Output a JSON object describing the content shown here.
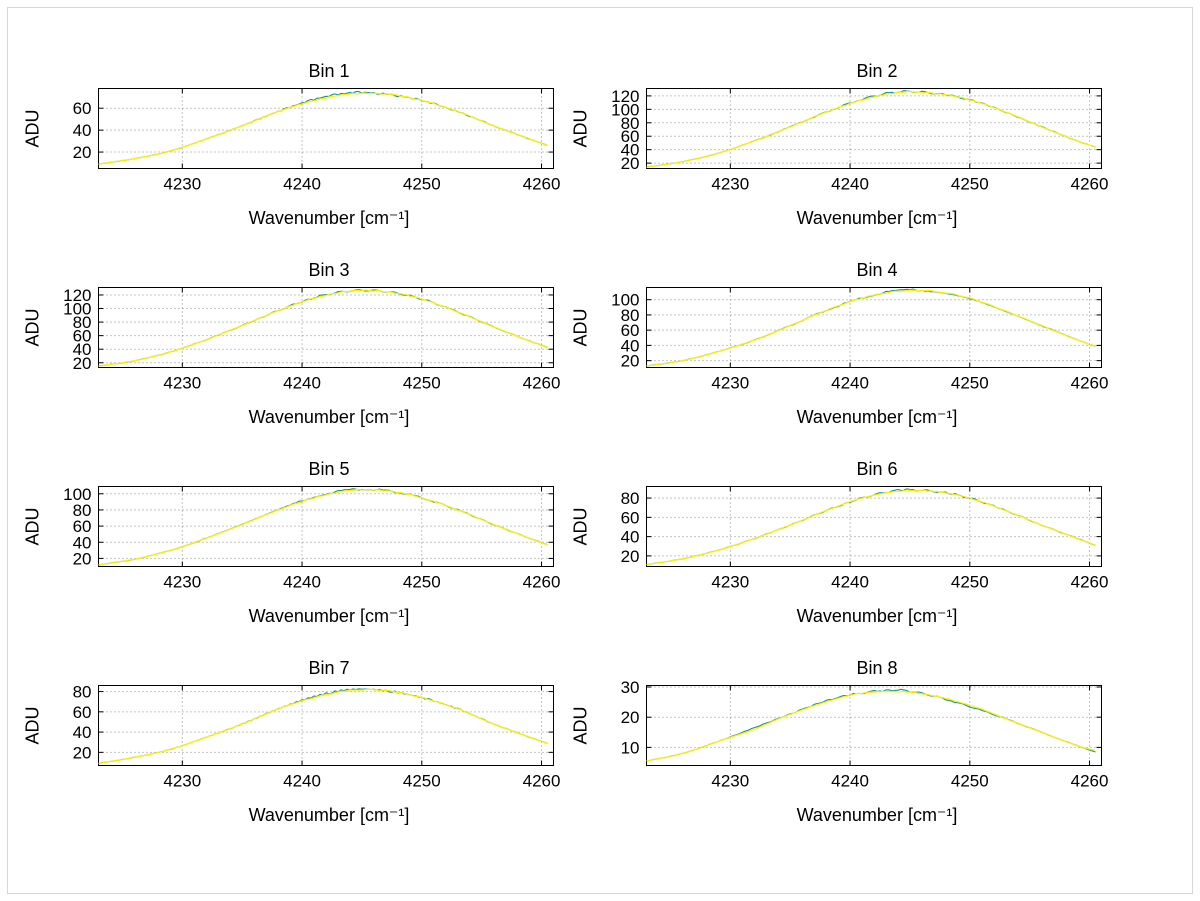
{
  "figure": {
    "background": "#ffffff",
    "frame_border": "#d6d6d6"
  },
  "chart_data": {
    "type": "line",
    "layout": {
      "rows": 4,
      "cols": 2
    },
    "xlabel": "Wavenumber [cm⁻¹]",
    "ylabel": "ADU",
    "xlim": [
      4223,
      4261
    ],
    "xticks": [
      4230,
      4240,
      4250,
      4260
    ],
    "grid": "dotted",
    "legend": "none",
    "palette": {
      "grid": "#8a8a8a",
      "axis": "#000000",
      "text": "#000000"
    },
    "x": [
      4223,
      4226,
      4229,
      4232,
      4235,
      4238,
      4241,
      4244,
      4247,
      4250,
      4253,
      4256,
      4259,
      4260.5
    ],
    "subplots": [
      {
        "title": "Bin 1",
        "ylim": [
          5,
          78
        ],
        "yticks": [
          20,
          40,
          60
        ],
        "series": [
          {
            "name": "trace1",
            "color": "#15978a",
            "values": [
              9,
              14,
              21,
              32,
              44,
              57,
              68,
              74,
              73,
              67,
              57,
              44,
              32,
              26
            ]
          },
          {
            "name": "trace2",
            "color": "#ffee00",
            "values": [
              9,
              14,
              21,
              32,
              44,
              57,
              67,
              73,
              73,
              67,
              57,
              44,
              32,
              26
            ]
          }
        ]
      },
      {
        "title": "Bin 2",
        "ylim": [
          12,
          131
        ],
        "yticks": [
          20,
          40,
          60,
          80,
          100,
          120
        ],
        "series": [
          {
            "name": "trace1",
            "color": "#15978a",
            "values": [
              14,
              22,
              35,
              53,
              74,
              96,
              115,
              126,
              124,
              114,
              96,
              74,
              53,
              44
            ]
          },
          {
            "name": "trace2",
            "color": "#ffee00",
            "values": [
              14,
              22,
              35,
              53,
              74,
              96,
              114,
              125,
              124,
              114,
              96,
              74,
              53,
              44
            ]
          }
        ]
      },
      {
        "title": "Bin 3",
        "ylim": [
          13,
          131
        ],
        "yticks": [
          20,
          40,
          60,
          80,
          100,
          120
        ],
        "series": [
          {
            "name": "trace1",
            "color": "#15978a",
            "values": [
              15,
              23,
              36,
              54,
              75,
              97,
              116,
              126,
              125,
              114,
              95,
              73,
              52,
              43
            ]
          },
          {
            "name": "trace2",
            "color": "#ffee00",
            "values": [
              15,
              23,
              36,
              54,
              75,
              97,
              115,
              126,
              125,
              114,
              95,
              73,
              52,
              43
            ]
          }
        ]
      },
      {
        "title": "Bin 4",
        "ylim": [
          11,
          116
        ],
        "yticks": [
          20,
          40,
          60,
          80,
          100
        ],
        "series": [
          {
            "name": "trace1",
            "color": "#15978a",
            "values": [
              13,
              20,
              32,
              47,
              66,
              86,
              102,
              112,
              111,
              102,
              85,
              66,
              47,
              39
            ]
          },
          {
            "name": "trace2",
            "color": "#ffee00",
            "values": [
              13,
              20,
              32,
              47,
              66,
              86,
              102,
              111,
              111,
              102,
              85,
              66,
              47,
              39
            ]
          }
        ]
      },
      {
        "title": "Bin 5",
        "ylim": [
          10,
          109
        ],
        "yticks": [
          20,
          40,
          60,
          80,
          100
        ],
        "series": [
          {
            "name": "trace1",
            "color": "#15978a",
            "values": [
              12,
              19,
              30,
              45,
              62,
              80,
              96,
              105,
              104,
              95,
              80,
              62,
              45,
              37
            ]
          },
          {
            "name": "trace2",
            "color": "#ffee00",
            "values": [
              12,
              19,
              30,
              45,
              62,
              80,
              95,
              104,
              104,
              95,
              80,
              62,
              45,
              37
            ]
          }
        ]
      },
      {
        "title": "Bin 6",
        "ylim": [
          9,
          92
        ],
        "yticks": [
          20,
          40,
          60,
          80
        ],
        "series": [
          {
            "name": "trace1",
            "color": "#15978a",
            "values": [
              11,
              17,
              26,
              38,
              52,
              67,
              80,
              88,
              87,
              80,
              67,
              52,
              38,
              31
            ]
          },
          {
            "name": "trace2",
            "color": "#ffee00",
            "values": [
              11,
              17,
              26,
              38,
              52,
              67,
              80,
              87,
              87,
              80,
              67,
              52,
              38,
              31
            ]
          }
        ]
      },
      {
        "title": "Bin 7",
        "ylim": [
          7,
          86
        ],
        "yticks": [
          20,
          40,
          60,
          80
        ],
        "series": [
          {
            "name": "trace1",
            "color": "#15978a",
            "values": [
              9,
              15,
              23,
              35,
              48,
              63,
              75,
              82,
              81,
              74,
              63,
              48,
              35,
              29
            ]
          },
          {
            "name": "trace2",
            "color": "#ffee00",
            "values": [
              9,
              15,
              23,
              35,
              48,
              63,
              74,
              81,
              81,
              74,
              63,
              48,
              35,
              29
            ]
          }
        ]
      },
      {
        "title": "Bin 8",
        "ylim": [
          4,
          30.5
        ],
        "yticks": [
          10,
          20,
          30
        ],
        "series": [
          {
            "name": "trace1",
            "color": "#15978a",
            "values": [
              5.5,
              8,
              12,
              16.5,
              21,
              25.5,
              28,
              29,
              27,
              23.5,
              19.5,
              15,
              10.5,
              8.5
            ]
          },
          {
            "name": "trace2",
            "color": "#ffee00",
            "values": [
              5.5,
              8,
              12,
              16,
              21,
              25,
              28,
              28.5,
              27,
              24,
              19.5,
              15,
              10.5,
              9
            ]
          }
        ]
      }
    ]
  }
}
